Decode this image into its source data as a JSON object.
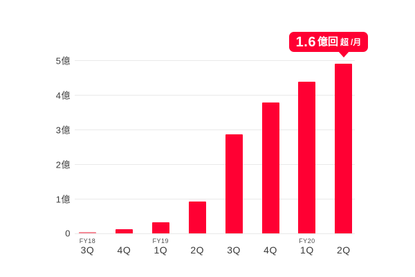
{
  "colors": {
    "background": "#ffffff",
    "bar": "#ff0033",
    "bar_first": "#f58a96",
    "grid": "#e9e9e9",
    "text": "#3b3b3b",
    "badge_bg": "#ff0033",
    "badge_text": "#ffffff"
  },
  "chart_data": {
    "type": "bar",
    "title": "",
    "xlabel": "",
    "ylabel": "",
    "unit": "億",
    "categories": [
      {
        "fy": "FY18",
        "q": "3Q"
      },
      {
        "fy": "",
        "q": "4Q"
      },
      {
        "fy": "FY19",
        "q": "1Q"
      },
      {
        "fy": "",
        "q": "2Q"
      },
      {
        "fy": "",
        "q": "3Q"
      },
      {
        "fy": "",
        "q": "4Q"
      },
      {
        "fy": "FY20",
        "q": "1Q"
      },
      {
        "fy": "",
        "q": "2Q"
      }
    ],
    "values": [
      0.04,
      0.13,
      0.32,
      0.92,
      2.86,
      3.79,
      4.39,
      4.91
    ],
    "y_ticks": [
      {
        "label": "5億",
        "value": 5
      },
      {
        "label": "4億",
        "value": 4
      },
      {
        "label": "3億",
        "value": 3
      },
      {
        "label": "2億",
        "value": 2
      },
      {
        "label": "1億",
        "value": 1
      },
      {
        "label": "0",
        "value": 0
      }
    ],
    "ylim": [
      0,
      5
    ],
    "grid": true,
    "legend": false,
    "annotation": {
      "text": "1.6億回超/月",
      "number": "1.6",
      "unit": "億回",
      "over": "超",
      "per": "/月"
    }
  }
}
